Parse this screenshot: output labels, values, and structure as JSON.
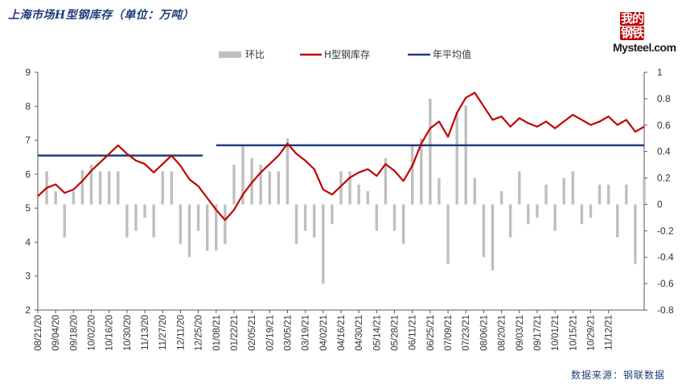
{
  "title": "上海市场H型钢库存（单位：万吨）",
  "source": "数据来源：钢联数据",
  "logo": {
    "line1": "我的",
    "line2": "钢铁",
    "en": "Mysteel.com"
  },
  "colors": {
    "bar": "#bfbfbf",
    "line": "#c00000",
    "avg": "#1f3d7a",
    "axis": "#595959",
    "text": "#333333"
  },
  "chart_data": {
    "type": "bar+line",
    "title": "上海市场H型钢库存（单位：万吨）",
    "legend": {
      "position": "top",
      "entries": [
        "环比",
        "H型钢库存",
        "年平均值"
      ]
    },
    "y_left": {
      "min": 2,
      "max": 9,
      "ticks": [
        2,
        3,
        4,
        5,
        6,
        7,
        8,
        9
      ]
    },
    "y_right": {
      "min": -0.8,
      "max": 1,
      "ticks": [
        "-0.8",
        "-0.6",
        "-0.4",
        "-0.2",
        "0",
        "0.2",
        "0.4",
        "0.6",
        "0.8",
        "1"
      ]
    },
    "x_tick_labels": [
      "08/21/20",
      "09/04/20",
      "09/18/20",
      "10/02/20",
      "10/16/20",
      "10/30/20",
      "11/13/20",
      "11/27/20",
      "12/11/20",
      "12/25/20",
      "01/08/21",
      "01/22/21",
      "02/05/21",
      "02/19/21",
      "03/05/21",
      "03/19/21",
      "04/02/21",
      "04/16/21",
      "04/30/21",
      "05/14/21",
      "05/28/21",
      "06/11/21",
      "06/25/21",
      "07/09/21",
      "07/23/21",
      "08/06/21",
      "08/20/21",
      "09/03/21",
      "09/17/21",
      "10/01/21",
      "10/15/21",
      "10/29/21",
      "11/12/21"
    ],
    "points_per_tick": 2,
    "series": [
      {
        "name": "H型钢库存",
        "kind": "line",
        "axis": "left",
        "values": [
          5.35,
          5.6,
          5.7,
          5.45,
          5.55,
          5.8,
          6.1,
          6.35,
          6.6,
          6.85,
          6.6,
          6.4,
          6.3,
          6.05,
          6.3,
          6.55,
          6.25,
          5.85,
          5.65,
          5.3,
          4.95,
          4.65,
          4.95,
          5.4,
          5.75,
          6.05,
          6.3,
          6.55,
          6.9,
          6.6,
          6.4,
          6.15,
          5.55,
          5.4,
          5.65,
          5.9,
          6.05,
          6.15,
          5.95,
          6.3,
          6.1,
          5.8,
          6.25,
          6.9,
          7.35,
          7.55,
          7.1,
          7.8,
          8.25,
          8.4,
          8.0,
          7.6,
          7.7,
          7.4,
          7.65,
          7.5,
          7.4,
          7.55,
          7.35,
          7.55,
          7.75,
          7.6,
          7.45,
          7.55,
          7.7,
          7.45,
          7.6,
          7.25,
          7.4
        ]
      },
      {
        "name": "环比",
        "kind": "bar",
        "axis": "right",
        "values": [
          -0.01,
          0.25,
          0.1,
          -0.25,
          0.1,
          0.26,
          0.3,
          0.25,
          0.25,
          0.25,
          -0.25,
          -0.2,
          -0.1,
          -0.25,
          0.25,
          0.25,
          -0.3,
          -0.4,
          -0.2,
          -0.35,
          -0.35,
          -0.3,
          0.3,
          0.45,
          0.35,
          0.3,
          0.25,
          0.25,
          0.5,
          -0.3,
          -0.2,
          -0.25,
          -0.6,
          -0.15,
          0.25,
          0.25,
          0.15,
          0.1,
          -0.2,
          0.35,
          -0.2,
          -0.3,
          0.45,
          0.5,
          0.8,
          0.2,
          -0.45,
          0.7,
          0.75,
          0.2,
          -0.4,
          -0.5,
          0.1,
          -0.25,
          0.25,
          -0.15,
          -0.1,
          0.15,
          -0.2,
          0.2,
          0.25,
          -0.15,
          -0.1,
          0.15,
          0.15,
          -0.25,
          0.15,
          -0.45,
          0.2
        ]
      },
      {
        "name": "年平均值",
        "kind": "step",
        "axis": "left",
        "segments": [
          {
            "from": "08/21/20",
            "to": "12/31/20",
            "value": 6.55
          },
          {
            "from": "01/08/21",
            "to": "11/12/21",
            "value": 6.85
          }
        ]
      }
    ]
  }
}
